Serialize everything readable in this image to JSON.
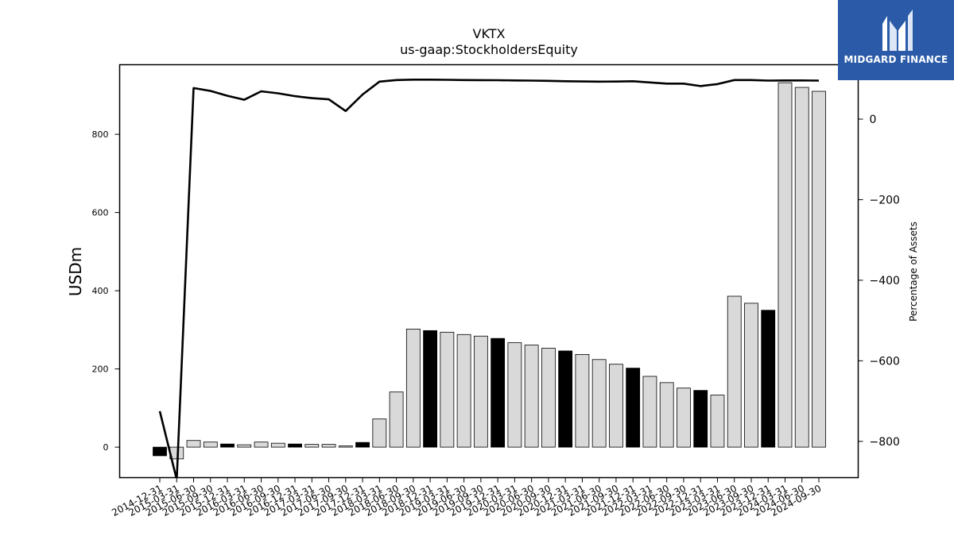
{
  "chart_data": {
    "type": "bar",
    "title": "VKTX",
    "subtitle": "us-gaap:StockholdersEquity",
    "ylabel": "USDm",
    "ylabel_right": "Percentage of Assets",
    "ylim": [
      -78,
      978
    ],
    "ylim_right": [
      -890,
      135
    ],
    "yticks_left": [
      0,
      200,
      400,
      600,
      800
    ],
    "yticks_right": [
      -800,
      -600,
      -400,
      -200,
      0
    ],
    "categories": [
      "2014-12-31",
      "2015-03-31",
      "2015-06-30",
      "2015-09-30",
      "2015-12-31",
      "2016-03-31",
      "2016-06-30",
      "2016-09-30",
      "2016-12-31",
      "2017-03-31",
      "2017-06-30",
      "2017-09-30",
      "2017-12-31",
      "2018-03-31",
      "2018-06-30",
      "2018-09-30",
      "2018-12-31",
      "2019-03-31",
      "2019-06-30",
      "2019-09-30",
      "2019-12-31",
      "2020-03-31",
      "2020-06-30",
      "2020-09-30",
      "2020-12-31",
      "2021-03-31",
      "2021-06-30",
      "2021-09-30",
      "2021-12-31",
      "2022-03-31",
      "2022-06-30",
      "2022-09-30",
      "2022-12-31",
      "2023-03-31",
      "2023-06-30",
      "2023-09-30",
      "2023-12-31",
      "2024-03-31",
      "2024-06-30",
      "2024-09-30"
    ],
    "series": [
      {
        "values": [
          -22,
          -30,
          17,
          13,
          8,
          6,
          13,
          10,
          8,
          7,
          7,
          3,
          12,
          72,
          141,
          302,
          298,
          294,
          288,
          284,
          278,
          267,
          261,
          253,
          246,
          237,
          224,
          212,
          202,
          181,
          165,
          151,
          145,
          133,
          386,
          368,
          350,
          932,
          920,
          910
        ]
      },
      {
        "values": [
          -725,
          -895,
          77,
          70,
          58,
          48,
          69,
          64,
          57,
          52,
          49,
          20,
          61,
          93,
          97,
          98,
          98,
          97.5,
          97,
          96.8,
          96.5,
          96,
          95.5,
          95,
          94,
          93.5,
          93,
          93.2,
          94,
          91,
          88,
          88,
          82,
          87,
          97,
          97,
          95.5,
          96,
          96,
          95.5
        ]
      }
    ],
    "bar_style": {
      "highlight_color": "#000000",
      "normal_color": "#d9d9d9",
      "highlight_month": "12"
    },
    "line_color": "#000000"
  },
  "brand": {
    "name": "MIDGARD FINANCE",
    "color": "#2a5aa8"
  }
}
